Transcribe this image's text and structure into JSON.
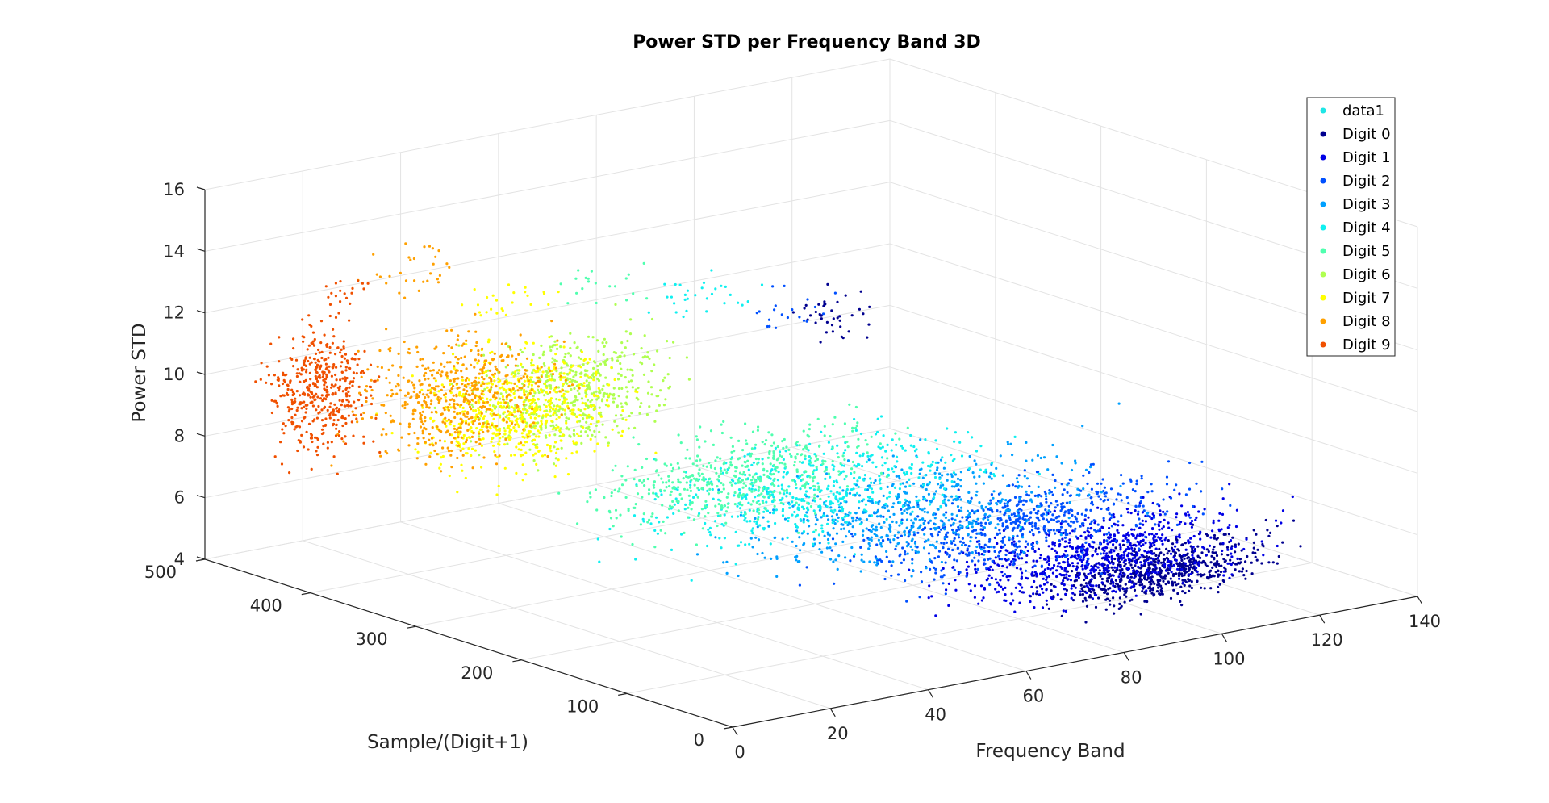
{
  "chart_data": {
    "type": "scatter",
    "projection": "3d",
    "title": "Power STD per Frequency Band 3D",
    "xlabel": "Frequency Band",
    "ylabel": "Sample/(Digit+1)",
    "zlabel": "Power STD",
    "xlim": [
      0,
      140
    ],
    "ylim": [
      0,
      500
    ],
    "zlim": [
      4,
      16
    ],
    "xticks": [
      "0",
      "20",
      "40",
      "60",
      "80",
      "100",
      "120",
      "140"
    ],
    "yticks": [
      "0",
      "100",
      "200",
      "300",
      "400",
      "500"
    ],
    "zticks": [
      "4",
      "6",
      "8",
      "10",
      "12",
      "14",
      "16"
    ],
    "grid": true,
    "legend_position": "top-right",
    "legend": [
      "data1",
      "Digit 0",
      "Digit 1",
      "Digit 2",
      "Digit 3",
      "Digit 4",
      "Digit 5",
      "Digit 6",
      "Digit 7",
      "Digit 8",
      "Digit 9"
    ],
    "series": [
      {
        "name": "data1",
        "color": "#1ee6e6",
        "clusters": []
      },
      {
        "name": "Digit 0",
        "color": "#00008f",
        "clusters": [
          {
            "x": [
              60,
              125
            ],
            "y": [
              0,
              50
            ],
            "z": [
              4.5,
              7.5
            ],
            "n": 700
          },
          {
            "x": [
              110,
              130
            ],
            "y": [
              430,
              490
            ],
            "z": [
              7.5,
              10
            ],
            "n": 40
          }
        ]
      },
      {
        "name": "Digit 1",
        "color": "#0000e6",
        "clusters": [
          {
            "x": [
              40,
              130
            ],
            "y": [
              0,
              100
            ],
            "z": [
              4.5,
              8.5
            ],
            "n": 800
          }
        ]
      },
      {
        "name": "Digit 2",
        "color": "#0050ff",
        "clusters": [
          {
            "x": [
              30,
              130
            ],
            "y": [
              50,
              150
            ],
            "z": [
              5,
              9
            ],
            "n": 650
          },
          {
            "x": [
              100,
              125
            ],
            "y": [
              440,
              490
            ],
            "z": [
              8,
              10
            ],
            "n": 20
          }
        ]
      },
      {
        "name": "Digit 3",
        "color": "#00a0ff",
        "clusters": [
          {
            "x": [
              20,
              120
            ],
            "y": [
              100,
              200
            ],
            "z": [
              5,
              9.5
            ],
            "n": 600
          }
        ]
      },
      {
        "name": "Digit 4",
        "color": "#10f0f0",
        "clusters": [
          {
            "x": [
              10,
              110
            ],
            "y": [
              150,
              250
            ],
            "z": [
              5.5,
              10
            ],
            "n": 550
          },
          {
            "x": [
              80,
              110
            ],
            "y": [
              450,
              490
            ],
            "z": [
              9,
              11
            ],
            "n": 30
          }
        ]
      },
      {
        "name": "Digit 5",
        "color": "#50ffaf",
        "clusters": [
          {
            "x": [
              10,
              100
            ],
            "y": [
              200,
              300
            ],
            "z": [
              5.5,
              10
            ],
            "n": 500
          },
          {
            "x": [
              60,
              90
            ],
            "y": [
              450,
              490
            ],
            "z": [
              10,
              12
            ],
            "n": 20
          }
        ]
      },
      {
        "name": "Digit 6",
        "color": "#afff50",
        "clusters": [
          {
            "x": [
              5,
              60
            ],
            "y": [
              250,
              350
            ],
            "z": [
              8,
              13.5
            ],
            "n": 550
          }
        ]
      },
      {
        "name": "Digit 7",
        "color": "#ffff00",
        "clusters": [
          {
            "x": [
              3,
              60
            ],
            "y": [
              300,
              400
            ],
            "z": [
              6.5,
              12.5
            ],
            "n": 600
          },
          {
            "x": [
              40,
              70
            ],
            "y": [
              450,
              490
            ],
            "z": [
              10,
              12
            ],
            "n": 25
          }
        ]
      },
      {
        "name": "Digit 8",
        "color": "#ffa000",
        "clusters": [
          {
            "x": [
              2,
              60
            ],
            "y": [
              350,
              450
            ],
            "z": [
              6.5,
              12.5
            ],
            "n": 550
          },
          {
            "x": [
              20,
              50
            ],
            "y": [
              450,
              490
            ],
            "z": [
              11,
              14
            ],
            "n": 30
          }
        ]
      },
      {
        "name": "Digit 9",
        "color": "#f05000",
        "clusters": [
          {
            "x": [
              1,
              25
            ],
            "y": [
              400,
              500
            ],
            "z": [
              6.5,
              12.5
            ],
            "n": 450
          },
          {
            "x": [
              10,
              30
            ],
            "y": [
              440,
              480
            ],
            "z": [
              11.5,
              13.5
            ],
            "n": 20
          }
        ]
      }
    ]
  }
}
